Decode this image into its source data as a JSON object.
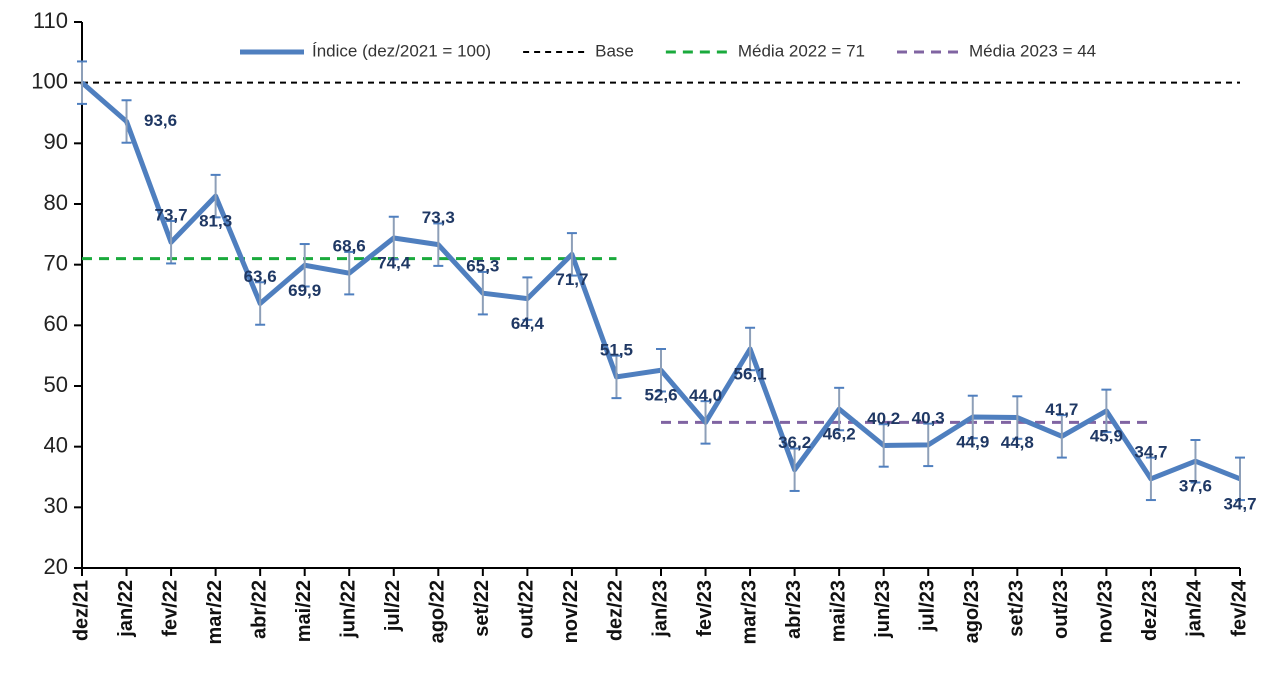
{
  "chart_data": {
    "type": "line",
    "categories": [
      "dez/21",
      "jan/22",
      "fev/22",
      "mar/22",
      "abr/22",
      "mai/22",
      "jun/22",
      "jul/22",
      "ago/22",
      "set/22",
      "out/22",
      "nov/22",
      "dez/22",
      "jan/23",
      "fev/23",
      "mar/23",
      "abr/23",
      "mai/23",
      "jun/23",
      "jul/23",
      "ago/23",
      "set/23",
      "out/23",
      "nov/23",
      "dez/23",
      "jan/24",
      "fev/24"
    ],
    "series": [
      {
        "name": "Índice (dez/2021 = 100)",
        "color": "#4f7fbf",
        "values": [
          100,
          93.6,
          73.7,
          81.3,
          63.6,
          69.9,
          68.6,
          74.4,
          73.3,
          65.3,
          64.4,
          71.7,
          51.5,
          52.6,
          44.0,
          56.1,
          36.2,
          46.2,
          40.2,
          40.3,
          44.9,
          44.8,
          41.7,
          45.9,
          34.7,
          37.6,
          34.7
        ],
        "value_labels": [
          null,
          "93,6",
          "73,7",
          "81,3",
          "63,6",
          "69,9",
          "68,6",
          "74,4",
          "73,3",
          "65,3",
          "64,4",
          "71,7",
          "51,5",
          "52,6",
          "44,0",
          "56,1",
          "36,2",
          "46,2",
          "40,2",
          "40,3",
          "44,9",
          "44,8",
          "41,7",
          "45,9",
          "34,7",
          "37,6",
          "34,7"
        ],
        "errors": [
          3.5,
          3.5,
          3.5,
          3.5,
          3.5,
          3.5,
          3.5,
          3.5,
          3.5,
          3.5,
          3.5,
          3.5,
          3.5,
          3.5,
          3.5,
          3.5,
          3.5,
          3.5,
          3.5,
          3.5,
          3.5,
          3.5,
          3.5,
          3.5,
          3.5,
          3.5,
          3.5
        ],
        "error_color": "#8d9fb8"
      }
    ],
    "reference_lines": [
      {
        "name": "Base",
        "value": 100,
        "color": "#000000",
        "start": "dez/21",
        "end": "fev/24"
      },
      {
        "name": "Média 2022 = 71",
        "value": 71,
        "color": "#1aaa3c",
        "start": "dez/21",
        "end": "dez/22"
      },
      {
        "name": "Média 2023 = 44",
        "value": 44,
        "color": "#8064a2",
        "start": "jan/23",
        "end": "dez/23"
      }
    ],
    "ylim": [
      20,
      110
    ],
    "yticks": [
      20,
      30,
      40,
      50,
      60,
      70,
      80,
      90,
      100,
      110
    ],
    "grid": false,
    "legend": "top"
  }
}
